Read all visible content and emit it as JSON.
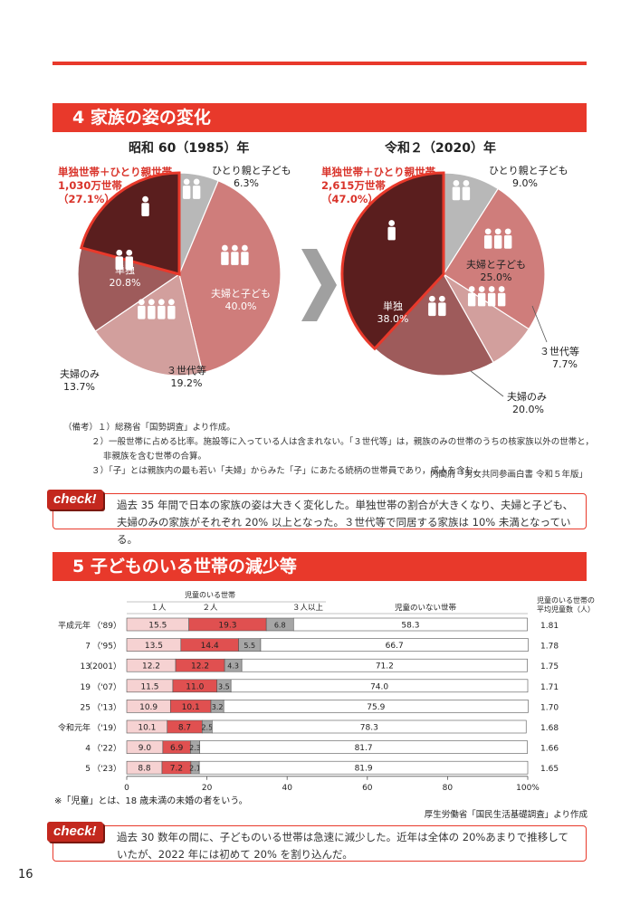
{
  "section4": {
    "title": "4 家族の姿の変化",
    "pie1": {
      "year_label": "昭和 60（1985）年",
      "highlight": [
        "単独世帯＋ひとり親世帯",
        "1,030万世帯",
        "（27.1%）"
      ],
      "slices": [
        {
          "label": "ひとり親と子ども",
          "value": "6.3%"
        },
        {
          "label": "夫婦と子ども",
          "value": "40.0%"
        },
        {
          "label": "３世代等",
          "value": "19.2%"
        },
        {
          "label": "夫婦のみ",
          "value": "13.7%"
        },
        {
          "label": "単独",
          "value": "20.8%"
        }
      ]
    },
    "pie2": {
      "year_label": "令和２（2020）年",
      "highlight": [
        "単独世帯＋ひとり親世帯",
        "2,615万世帯",
        "（47.0%）"
      ],
      "slices": [
        {
          "label": "ひとり親と子ども",
          "value": "9.0%"
        },
        {
          "label": "夫婦と子ども",
          "value": "25.0%"
        },
        {
          "label": "３世代等",
          "value": "7.7%"
        },
        {
          "label": "夫婦のみ",
          "value": "20.0%"
        },
        {
          "label": "単独",
          "value": "38.0%"
        }
      ]
    },
    "notes": [
      "（備考）１）総務省「国勢調査」より作成。",
      "２）一般世帯に占める比率。施設等に入っている人は含まれない。「３世代等」は，親族のみの世帯のうちの核家族以外の世帯と，",
      "非親族を含む世帯の合算。",
      "３）「子」とは親族内の最も若い「夫婦」からみた「子」にあたる続柄の世帯員であり，成人を含む。"
    ],
    "source": "内閣府「男女共同参画白書 令和５年版」",
    "check_label": "check!",
    "check_text": "過去 35 年間で日本の家族の姿は大きく変化した。単独世帯の割合が大きくなり、夫婦と子ども、夫婦のみの家族がそれぞれ 20% 以上となった。３世代等で同居する家族は 10% 未満となっている。"
  },
  "section5": {
    "title": "5 子どものいる世帯の減少等",
    "legend_group": "児童のいる世帯",
    "legend": [
      "１人",
      "２人",
      "３人以上",
      "児童のいない世帯"
    ],
    "avg_header": [
      "児童のいる世帯の",
      "平均児童数（人）"
    ],
    "note": "※「児童」とは、18 歳未満の未婚の者をいう。",
    "source": "厚生労働省「国民生活基礎調査」より作成",
    "check_label": "check!",
    "check_text": "過去 30 数年の間に、子どものいる世帯は急速に減少した。近年は全体の 20%あまりで推移していたが、2022 年には初めて 20% を割り込んだ。"
  },
  "chart_data": [
    {
      "type": "pie",
      "title": "昭和 60（1985）年",
      "categories": [
        "ひとり親と子ども",
        "夫婦と子ども",
        "３世代等",
        "夫婦のみ",
        "単独"
      ],
      "values": [
        6.3,
        40.0,
        19.2,
        13.7,
        20.8
      ],
      "colors": [
        "#b8b8b8",
        "#cf7d7b",
        "#d29f9d",
        "#9e5b5b",
        "#5a1e1e"
      ]
    },
    {
      "type": "pie",
      "title": "令和２（2020）年",
      "categories": [
        "ひとり親と子ども",
        "夫婦と子ども",
        "３世代等",
        "夫婦のみ",
        "単独"
      ],
      "values": [
        9.0,
        25.0,
        7.7,
        20.0,
        38.0
      ],
      "colors": [
        "#b8b8b8",
        "#cf7d7b",
        "#d29f9d",
        "#9e5b5b",
        "#5a1e1e"
      ]
    },
    {
      "type": "bar",
      "stacked": true,
      "orientation": "horizontal",
      "categories": [
        {
          "era": "平成元年",
          "yr": "（'89）"
        },
        {
          "era": "7",
          "yr": "（'95）"
        },
        {
          "era": "13",
          "yr": "（2001）"
        },
        {
          "era": "19",
          "yr": "（'07）"
        },
        {
          "era": "25",
          "yr": "（'13）"
        },
        {
          "era": "令和元年",
          "yr": "（'19）"
        },
        {
          "era": "4",
          "yr": "（'22）"
        },
        {
          "era": "5",
          "yr": "（'23）"
        }
      ],
      "series": [
        {
          "name": "１人",
          "color": "#f6d2d2",
          "values": [
            15.5,
            13.5,
            12.2,
            11.5,
            10.9,
            10.1,
            9.0,
            8.8
          ]
        },
        {
          "name": "２人",
          "color": "#e05050",
          "values": [
            19.3,
            14.4,
            12.2,
            11.0,
            10.1,
            8.7,
            6.9,
            7.2
          ]
        },
        {
          "name": "３人以上",
          "color": "#a6a6a6",
          "values": [
            6.8,
            5.5,
            4.3,
            3.5,
            3.2,
            2.5,
            2.3,
            2.1
          ]
        },
        {
          "name": "児童のいない世帯",
          "color": "#ffffff",
          "values": [
            58.3,
            66.7,
            71.2,
            74.0,
            75.9,
            78.3,
            81.7,
            81.9
          ]
        }
      ],
      "avg_children": [
        "1.81",
        "1.78",
        "1.75",
        "1.71",
        "1.70",
        "1.68",
        "1.66",
        "1.65"
      ],
      "xticks": [
        "0",
        "20",
        "40",
        "60",
        "80",
        "100%"
      ],
      "xlim": [
        0,
        100
      ]
    }
  ],
  "page_number": "16"
}
